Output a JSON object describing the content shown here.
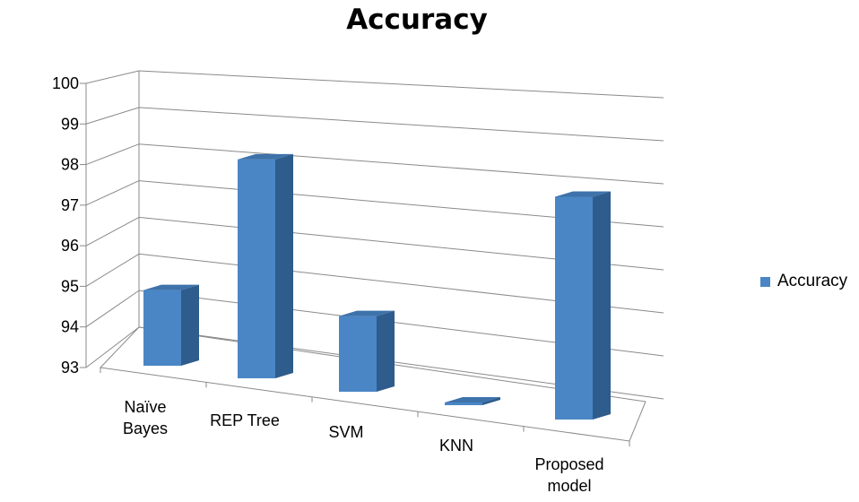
{
  "chart_data": {
    "type": "bar",
    "title": "Accuracy",
    "categories": [
      [
        "Naïve",
        "Bayes"
      ],
      [
        "REP Tree"
      ],
      [
        "SVM"
      ],
      [
        "KNN"
      ],
      [
        "Proposed",
        "model"
      ]
    ],
    "series": [
      {
        "name": "Accuracy",
        "values": [
          94.9,
          98.5,
          94.9,
          92.7,
          98.6
        ]
      }
    ],
    "ylim": [
      93,
      100
    ],
    "yticks": [
      "93",
      "94",
      "95",
      "96",
      "97",
      "98",
      "99",
      "100"
    ],
    "legend_position": "right",
    "grid": true,
    "colors": {
      "front": "#4A86C5",
      "side": "#2E5C8C",
      "top": "#3E72AA"
    }
  }
}
